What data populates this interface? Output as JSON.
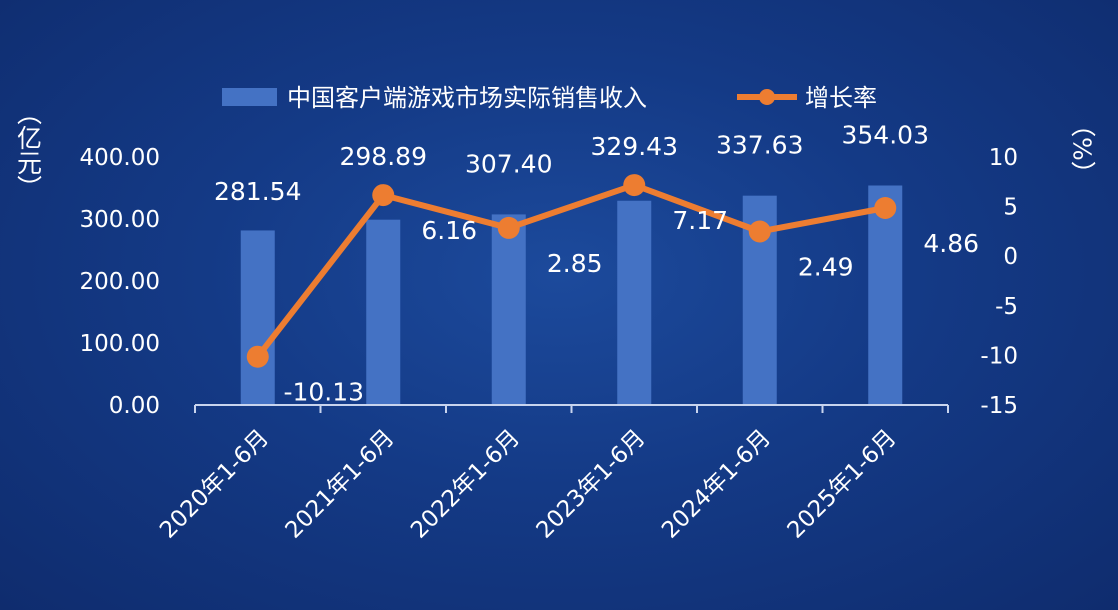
{
  "chart_data": {
    "type": "bar",
    "categories": [
      "2020年1-6月",
      "2021年1-6月",
      "2022年1-6月",
      "2023年1-6月",
      "2024年1-6月",
      "2025年1-6月"
    ],
    "series": [
      {
        "name": "中国客户端游戏市场实际销售收入",
        "type": "bar",
        "axis": "left",
        "values": [
          281.54,
          298.89,
          307.4,
          329.43,
          337.63,
          354.03
        ]
      },
      {
        "name": "增长率",
        "type": "line",
        "axis": "right",
        "values": [
          -10.13,
          6.16,
          2.85,
          7.17,
          2.49,
          4.86
        ]
      }
    ],
    "ylabel": "（亿元）",
    "y2label": "（%）",
    "ylim": [
      0,
      400
    ],
    "y2lim": [
      -15,
      10
    ],
    "yticks": [
      "0.00",
      "100.00",
      "200.00",
      "300.00",
      "400.00"
    ],
    "y2ticks": [
      "-15",
      "-10",
      "-5",
      "0",
      "5",
      "10"
    ],
    "bar_labels": [
      "281.54",
      "298.89",
      "307.40",
      "329.43",
      "337.63",
      "354.03"
    ],
    "line_labels": [
      "-10.13",
      "6.16",
      "2.85",
      "7.17",
      "2.49",
      "4.86"
    ],
    "legend_position": "top",
    "grid": false,
    "colors": {
      "bar": "#4472c4",
      "line": "#ed7d31",
      "axis": "#c8d4ee",
      "text": "#ffffff"
    }
  }
}
